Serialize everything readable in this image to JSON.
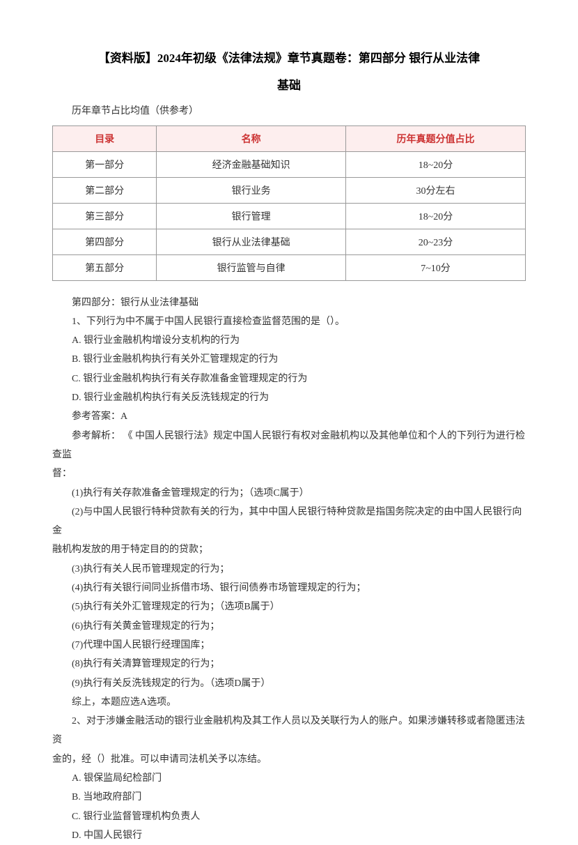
{
  "title_line1": "【资料版】2024年初级《法律法规》章节真题卷：第四部分 银行从业法律",
  "title_line2": "基础",
  "subtitle": "历年章节占比均值（供参考）",
  "table": {
    "headers": [
      "目录",
      "名称",
      "历年真题分值占比"
    ],
    "rows": [
      [
        "第一部分",
        "经济金融基础知识",
        "18~20分"
      ],
      [
        "第二部分",
        "银行业务",
        "30分左右"
      ],
      [
        "第三部分",
        "银行管理",
        "18~20分"
      ],
      [
        "第四部分",
        "银行从业法律基础",
        "20~23分"
      ],
      [
        "第五部分",
        "银行监管与自律",
        "7~10分"
      ]
    ]
  },
  "body": [
    "第四部分：银行从业法律基础",
    "1、下列行为中不属于中国人民银行直接检查监督范围的是（）。",
    "A. 银行业金融机构增设分支机构的行为",
    "B. 银行业金融机构执行有关外汇管理规定的行为",
    "C. 银行业金融机构执行有关存款准备金管理规定的行为",
    "D. 银行业金融机构执行有关反洗钱规定的行为",
    "参考答案：A",
    "参考解析： 《 中国人民银行法》规定中国人民银行有权对金融机构以及其他单位和个人的下列行为进行检查监",
    "(1)执行有关存款准备金管理规定的行为；（选项C属于）",
    "(2)与中国人民银行特种贷款有关的行为，其中中国人民银行特种贷款是指国务院决定的由中国人民银行向金",
    "(3)执行有关人民币管理规定的行为；",
    "(4)执行有关银行间同业拆借市场、银行间债券市场管理规定的行为；",
    "(5)执行有关外汇管理规定的行为；（选项B属于）",
    "(6)执行有关黄金管理规定的行为；",
    "(7)代理中国人民银行经理国库；",
    "(8)执行有关清算管理规定的行为；",
    "(9)执行有关反洗钱规定的行为。（选项D属于）",
    "综上，本题应选A选项。",
    "2、对于涉嫌金融活动的银行业金融机构及其工作人员以及关联行为人的账户。如果涉嫌转移或者隐匿违法资",
    "A. 银保监局纪检部门",
    "B. 当地政府部门",
    "C. 银行业监督管理机构负责人",
    "D. 中国人民银行"
  ],
  "hangLine1": "督：",
  "hangLine2": "融机构发放的用于特定目的的贷款；",
  "hangLine3": "金的，经（）批准。可以申请司法机关予以冻结。"
}
